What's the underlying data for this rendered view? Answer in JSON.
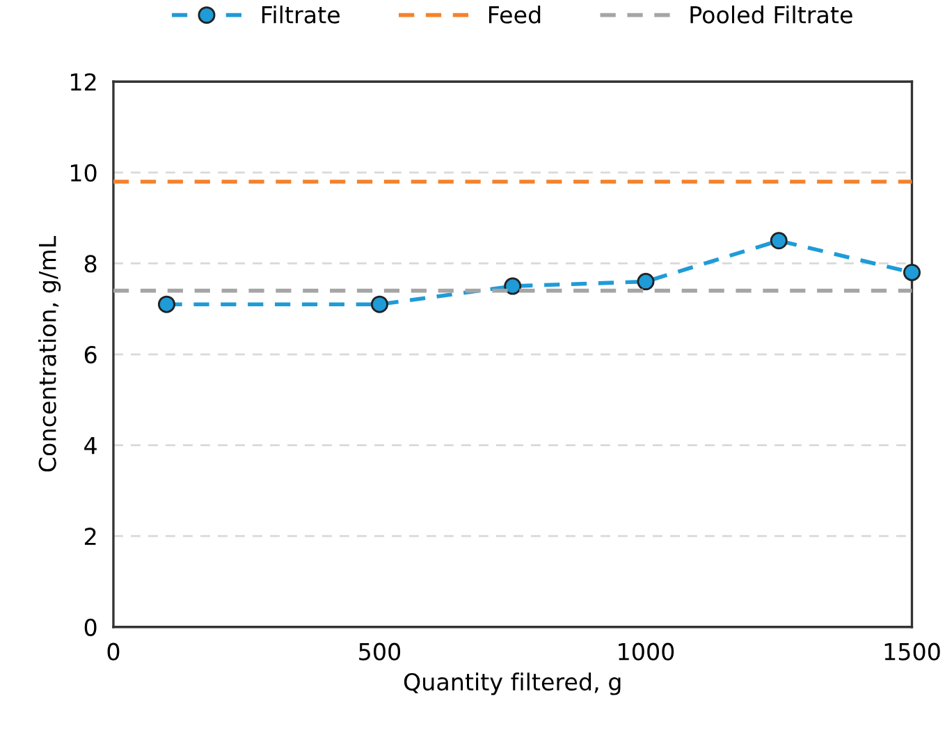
{
  "chart_data": {
    "type": "line",
    "xlabel": "Quantity filtered, g",
    "ylabel": "Concentration, g/mL",
    "xlim": [
      0,
      1500
    ],
    "xticks": [
      0,
      500,
      1000,
      1500
    ],
    "ylim": [
      0,
      12
    ],
    "yticks": [
      0,
      2,
      4,
      6,
      8,
      10,
      12
    ],
    "grid": "y",
    "legend": "top",
    "line_style": "dashed",
    "series": [
      {
        "name": "Filtrate",
        "color": "#1f9bd7",
        "marker": "circle",
        "x": [
          100,
          500,
          750,
          1000,
          1250,
          1500
        ],
        "values": [
          7.1,
          7.1,
          7.5,
          7.6,
          8.5,
          7.8
        ]
      },
      {
        "name": "Feed",
        "color": "#f4822c",
        "marker": "none",
        "x": [
          0,
          1500
        ],
        "values": [
          9.8,
          9.8
        ]
      },
      {
        "name": "Pooled Filtrate",
        "color": "#a5a5a5",
        "marker": "none",
        "x": [
          0,
          1500
        ],
        "values": [
          7.4,
          7.4
        ]
      }
    ]
  }
}
